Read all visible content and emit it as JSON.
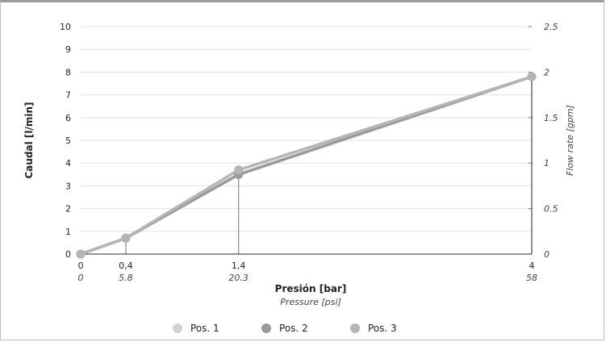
{
  "chart_data": {
    "type": "line",
    "xlabel": "Presión [bar]",
    "xlabel_secondary": "Pressure [psi]",
    "ylabel": "Caudal [l/min]",
    "ylabel_secondary": "Flow rate [gpm]",
    "x_ticks": [
      "0",
      "0,4",
      "1,4",
      "4"
    ],
    "x_ticks_secondary": [
      "0",
      "5.8",
      "20.3",
      "58"
    ],
    "x_values": [
      0,
      0.4,
      1.4,
      4
    ],
    "xlim": [
      0,
      4
    ],
    "ylim": [
      0,
      10
    ],
    "y_ticks": [
      "0",
      "1",
      "2",
      "3",
      "4",
      "5",
      "6",
      "7",
      "8",
      "9",
      "10"
    ],
    "y2lim": [
      0,
      2.5
    ],
    "y2_ticks": [
      "0",
      "0.5",
      "1",
      "1.5",
      "2",
      "2.5"
    ],
    "grid": true,
    "legend_position": "bottom",
    "series": [
      {
        "name": "Pos. 1",
        "color": "#d2d2d2",
        "values": [
          0,
          0.7,
          3.5,
          7.8
        ]
      },
      {
        "name": "Pos. 2",
        "color": "#9a9a9a",
        "values": [
          0,
          0.7,
          3.5,
          7.8
        ]
      },
      {
        "name": "Pos. 3",
        "color": "#b5b5b5",
        "values": [
          0,
          0.7,
          3.7,
          7.8
        ]
      }
    ]
  }
}
